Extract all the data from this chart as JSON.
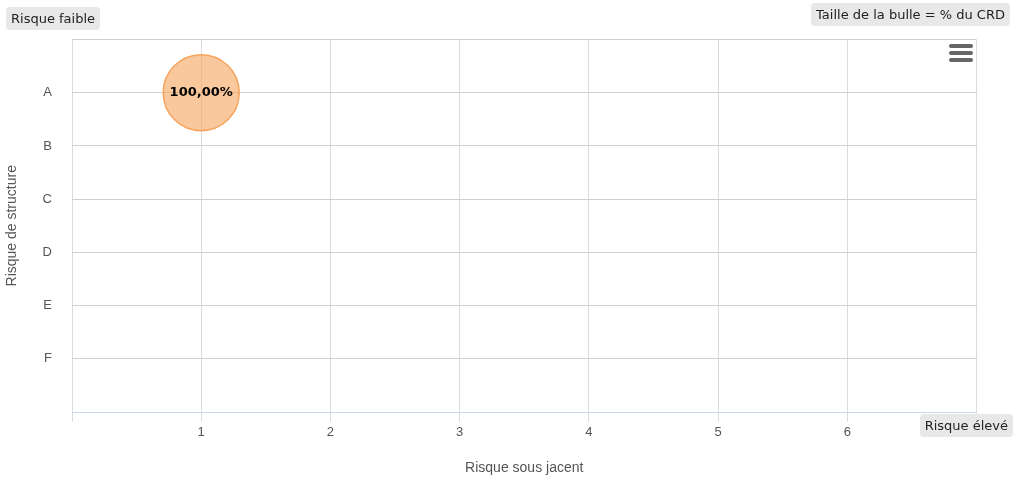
{
  "chart_data": {
    "type": "bubble",
    "orientation": "horizontal",
    "xlabel": "Risque sous jacent",
    "ylabel": "Risque de structure",
    "categories": [
      null,
      "A",
      "B",
      "C",
      "D",
      "E",
      "F",
      null
    ],
    "series": [
      {
        "color": "#f7a35c",
        "values": [
          null,
          1,
          null,
          null,
          null,
          null,
          null,
          null
        ],
        "sizes": [
          null,
          1,
          null,
          null,
          null,
          null,
          null,
          null
        ],
        "value_labels": [
          null,
          "100,00%",
          null,
          null,
          null,
          null,
          null,
          null
        ]
      }
    ],
    "xlim": [
      0,
      7
    ],
    "xticks": [
      {
        "value": 0,
        "label": null
      },
      1,
      2,
      3,
      4,
      5,
      6,
      {
        "value": 7,
        "label": null
      }
    ],
    "grid": true,
    "annotations": [
      "Risque faible",
      "Taille de la bulle = % du CRD",
      "Risque élevé"
    ]
  }
}
